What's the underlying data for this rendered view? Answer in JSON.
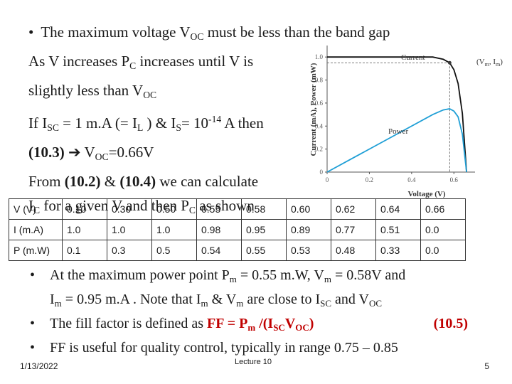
{
  "slide": {
    "top_lines": [
      {
        "bullet": "•",
        "pre": "The maximum voltage V",
        "sub": "OC",
        "post": " must be less  than the band  gap"
      },
      {
        "pre": "As V increases P",
        "sub": "C",
        "post": " increases until V is"
      },
      {
        "pre": "slightly less than V",
        "sub": "OC"
      },
      {
        "pre": "If  I",
        "sub1": "SC",
        "mid1": " = 1 m.A (= I",
        "sub2": "L",
        "mid2": " ) & I",
        "sub3": "S",
        "mid3": "= 10",
        "sup": "-14",
        "post": " A then"
      },
      {
        "bold1": "(10.3)",
        "arrow": "➔",
        "pre": " V",
        "sub": "OC",
        "post": "=0.66V"
      },
      {
        "pre": "From ",
        "bold1": "(10.2)",
        "mid": " & ",
        "bold2": "(10.4)",
        "post": " we can calculate"
      },
      {
        "pre": " I",
        "sub": "C",
        "post": " for a given V and then P",
        "sub2": "C",
        "post2": " as shown"
      }
    ],
    "table": {
      "rows": [
        {
          "label": "V (V)",
          "values": [
            "0.10",
            "0.30",
            "0.50",
            "0.55",
            "0.58",
            "0.60",
            "0.62",
            "0.64",
            "0.66"
          ]
        },
        {
          "label": "I (m.A)",
          "values": [
            "1.0",
            "1.0",
            "1.0",
            "0.98",
            "0.95",
            "0.89",
            "0.77",
            "0.51",
            "0.0"
          ]
        },
        {
          "label": "P (m.W)",
          "values": [
            "0.1",
            "0.3",
            "0.5",
            "0.54",
            "0.55",
            "0.53",
            "0.48",
            "0.33",
            "0.0"
          ]
        }
      ]
    },
    "bottom": {
      "b1": {
        "bullet": "•",
        "t1": "At the maximum power point P",
        "s1": "m",
        "t2": " = 0.55 m.W, V",
        "s2": "m",
        "t3": " = 0.58V and",
        "t4": "I",
        "s4": "m",
        "t5": " = 0.95 m.A . Note that I",
        "s5": "m",
        "t6": " & V",
        "s6": "m",
        "t7": " are close to I",
        "s7": "SC",
        "t8": " and V",
        "s8": "OC"
      },
      "b2": {
        "bullet": "•",
        "t1": "The fill factor is defined as   ",
        "f1": "FF = P",
        "fs1": "m",
        "f2": " /(I",
        "fs2": "SC",
        "f3": "V",
        "fs3": "OC",
        "f4": ")",
        "eq": "(10.5)"
      },
      "b3": {
        "bullet": "•",
        "t1": "FF is useful for quality control, typically in range 0.75 – 0.85"
      }
    },
    "footer": {
      "date": "1/13/2022",
      "center": "Lecture 10",
      "page": "5"
    },
    "colors": {
      "current_curve": "#111111",
      "power_curve": "#1f9fd6",
      "marker": "#3a3a3a",
      "eq_text": "#c00000"
    }
  },
  "chart_data": {
    "type": "line",
    "xlabel": "Voltage (V)",
    "ylabel": "Current (mA), Power (mW)",
    "xlim": [
      0,
      0.7
    ],
    "ylim": [
      0,
      1.1
    ],
    "x_ticks": [
      "0",
      "0.2",
      "0.4",
      "0.6"
    ],
    "y_ticks": [
      "0",
      "0.2",
      "0.4",
      "0.6",
      "0.8",
      "1.0"
    ],
    "series": [
      {
        "name": "Current",
        "x": [
          0,
          0.1,
          0.3,
          0.5,
          0.55,
          0.58,
          0.6,
          0.62,
          0.64,
          0.66
        ],
        "y": [
          1.0,
          1.0,
          1.0,
          1.0,
          0.98,
          0.95,
          0.89,
          0.77,
          0.51,
          0.0
        ]
      },
      {
        "name": "Power",
        "x": [
          0,
          0.1,
          0.3,
          0.5,
          0.55,
          0.58,
          0.6,
          0.62,
          0.64,
          0.66
        ],
        "y": [
          0,
          0.1,
          0.3,
          0.5,
          0.54,
          0.55,
          0.53,
          0.48,
          0.33,
          0.0
        ]
      }
    ],
    "annotation": {
      "pre": "(V",
      "s1": "m",
      "mid": ", I",
      "s2": "m",
      "post": ")"
    },
    "max_point": {
      "x": 0.58,
      "y": 0.95
    }
  }
}
